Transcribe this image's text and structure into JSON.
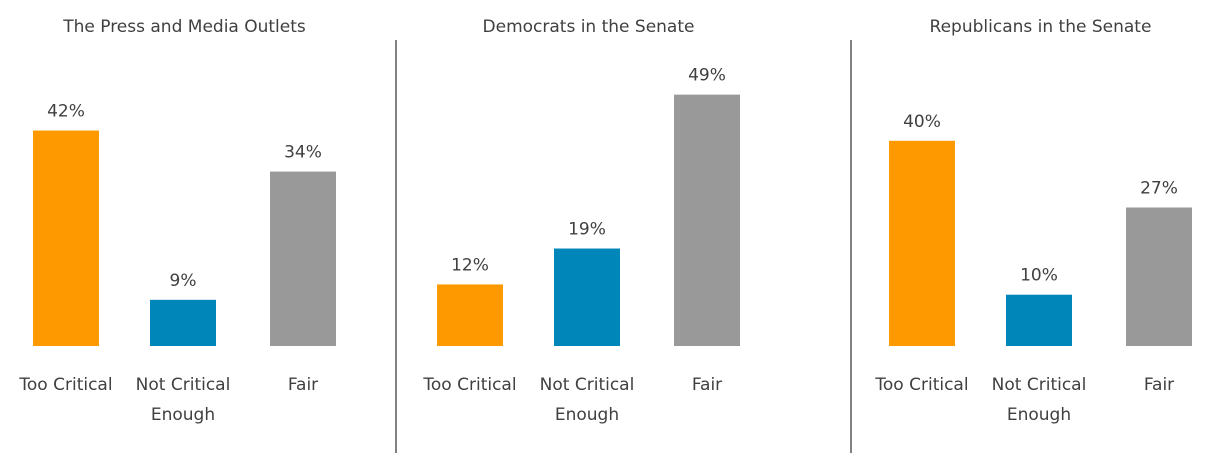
{
  "chart_data": [
    {
      "type": "bar",
      "title": "The Press and Media Outlets",
      "categories": [
        "Too Critical",
        "Not Critical Enough",
        "Fair"
      ],
      "category_lines": [
        [
          "Too Critical"
        ],
        [
          "Not Critical",
          "Enough"
        ],
        [
          "Fair"
        ]
      ],
      "values": [
        42,
        9,
        34
      ],
      "value_labels": [
        "42%",
        "9%",
        "34%"
      ],
      "colors": [
        "#FF9900",
        "#0086B8",
        "#999999"
      ],
      "ylim": [
        0,
        50
      ],
      "grid": false,
      "legend": "none"
    },
    {
      "type": "bar",
      "title": "Democrats in the Senate",
      "categories": [
        "Too Critical",
        "Not Critical Enough",
        "Fair"
      ],
      "category_lines": [
        [
          "Too Critical"
        ],
        [
          "Not Critical",
          "Enough"
        ],
        [
          "Fair"
        ]
      ],
      "values": [
        12,
        19,
        49
      ],
      "value_labels": [
        "12%",
        "19%",
        "49%"
      ],
      "colors": [
        "#FF9900",
        "#0086B8",
        "#999999"
      ],
      "ylim": [
        0,
        50
      ],
      "grid": false,
      "legend": "none"
    },
    {
      "type": "bar",
      "title": "Republicans in the Senate",
      "categories": [
        "Too Critical",
        "Not Critical Enough",
        "Fair"
      ],
      "category_lines": [
        [
          "Too Critical"
        ],
        [
          "Not Critical",
          "Enough"
        ],
        [
          "Fair"
        ]
      ],
      "values": [
        40,
        10,
        27
      ],
      "value_labels": [
        "40%",
        "10%",
        "27%"
      ],
      "colors": [
        "#FF9900",
        "#0086B8",
        "#999999"
      ],
      "ylim": [
        0,
        50
      ],
      "grid": false,
      "legend": "none"
    }
  ],
  "divider_color": "#595959",
  "text_color": "#404040"
}
